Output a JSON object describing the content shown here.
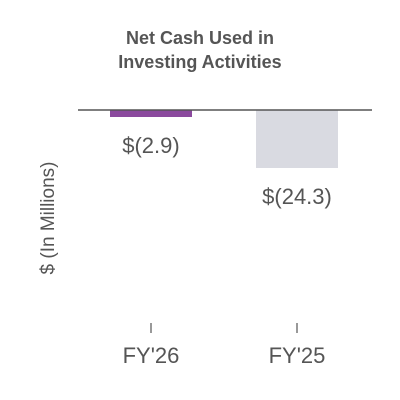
{
  "chart_data": {
    "type": "bar",
    "title_lines": [
      "Net Cash Used in",
      "Investing Activities"
    ],
    "ylabel": "$ (In Millions)",
    "categories": [
      "FY'26",
      "FY'25"
    ],
    "values": [
      -2.9,
      -24.3
    ],
    "data_labels": [
      "$(2.9)",
      "$(24.3)"
    ],
    "colors": [
      "#8b4a9e",
      "#d9dae1"
    ],
    "axis_color": "#555555",
    "text_color": "#555555",
    "grid": false,
    "legend": "none",
    "ylim": [
      -24.3,
      0
    ]
  }
}
